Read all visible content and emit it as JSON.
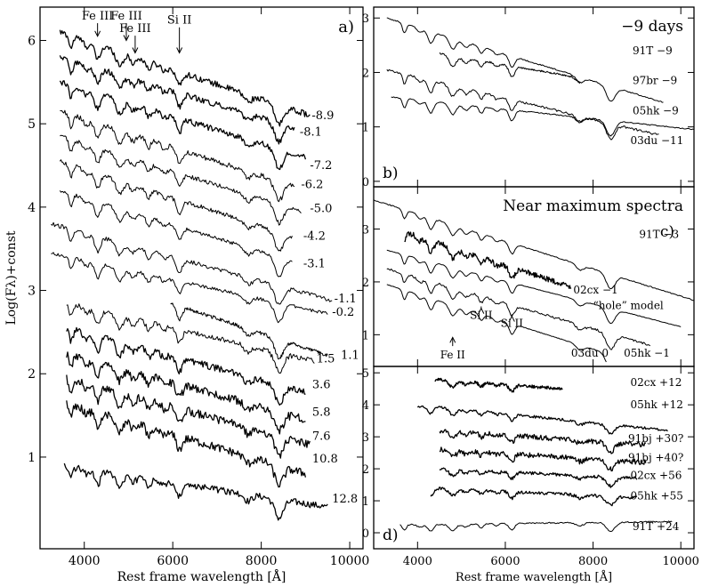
{
  "chart_data": [
    {
      "id": "a",
      "type": "line",
      "panel_label": "a)",
      "xlabel": "Rest frame wavelength [Å]",
      "ylabel": "Log(Fλ)+const",
      "xlim": [
        3000,
        10300
      ],
      "ylim": [
        -0.1,
        6.4
      ],
      "xticks": [
        4000,
        6000,
        8000,
        10000
      ],
      "xtick_labels": [
        "4000",
        "6000",
        "8000",
        "10000"
      ],
      "yticks": [
        1,
        2,
        3,
        4,
        5,
        6
      ],
      "ytick_labels": [
        "1",
        "2",
        "3",
        "4",
        "5",
        "6"
      ],
      "line_annotations": [
        {
          "label": "Fe III",
          "x": 4300,
          "y_tip": 6.05,
          "y_text": 6.25
        },
        {
          "label": "Fe III",
          "x": 4950,
          "y_tip": 6.0,
          "y_text": 6.25
        },
        {
          "label": "Fe III",
          "x": 5150,
          "y_tip": 5.85,
          "y_text": 6.1
        },
        {
          "label": "Si II",
          "x": 6150,
          "y_tip": 5.85,
          "y_text": 6.2
        }
      ],
      "series": [
        {
          "name": "-8.9",
          "x_range": [
            3450,
            9100
          ],
          "y_start": 6.1,
          "y_end": 5.1,
          "noise": 0.035,
          "label_pos": [
            9140,
            5.1
          ]
        },
        {
          "name": "-8.1",
          "x_range": [
            3450,
            8750
          ],
          "y_start": 5.8,
          "y_end": 4.95,
          "noise": 0.035,
          "label_pos": [
            8870,
            4.9
          ]
        },
        {
          "name": "-7.2",
          "x_range": [
            3450,
            9000
          ],
          "y_start": 5.5,
          "y_end": 4.6,
          "noise": 0.035,
          "label_pos": [
            9100,
            4.5
          ]
        },
        {
          "name": "-6.2",
          "x_range": [
            3450,
            8750
          ],
          "y_start": 5.15,
          "y_end": 4.25,
          "noise": 0.03,
          "label_pos": [
            8900,
            4.27
          ]
        },
        {
          "name": "-5.0",
          "x_range": [
            3450,
            8900
          ],
          "y_start": 4.85,
          "y_end": 3.95,
          "noise": 0.025,
          "label_pos": [
            9100,
            3.98
          ]
        },
        {
          "name": "-4.2",
          "x_range": [
            3450,
            8700
          ],
          "y_start": 4.55,
          "y_end": 3.65,
          "noise": 0.025,
          "label_pos": [
            8950,
            3.65
          ]
        },
        {
          "name": "-3.1",
          "x_range": [
            3450,
            8700
          ],
          "y_start": 4.2,
          "y_end": 3.35,
          "noise": 0.02,
          "label_pos": [
            8950,
            3.32
          ]
        },
        {
          "name": "-1.1",
          "x_range": [
            3250,
            9600
          ],
          "y_start": 3.8,
          "y_end": 2.88,
          "noise": 0.025,
          "label_pos": [
            9650,
            2.9
          ]
        },
        {
          "name": "-0.2",
          "x_range": [
            3250,
            9500
          ],
          "y_start": 3.45,
          "y_end": 2.72,
          "noise": 0.02,
          "label_pos": [
            9600,
            2.74
          ]
        },
        {
          "name": "1.1",
          "x_range": [
            5950,
            9500
          ],
          "y_start": 2.85,
          "y_end": 2.22,
          "noise": 0.02,
          "label_pos": [
            9800,
            2.22
          ]
        },
        {
          "name": "1.5",
          "x_range": [
            3600,
            9200
          ],
          "y_start": 2.85,
          "y_end": 2.15,
          "noise": 0.03,
          "label_pos": [
            9250,
            2.18
          ]
        },
        {
          "name": "3.6",
          "x_range": [
            3600,
            9000
          ],
          "y_start": 2.55,
          "y_end": 1.78,
          "noise": 0.04,
          "label_pos": [
            9150,
            1.87
          ]
        },
        {
          "name": "5.8",
          "x_range": [
            3600,
            9000
          ],
          "y_start": 2.25,
          "y_end": 1.45,
          "noise": 0.05,
          "label_pos": [
            9150,
            1.54
          ]
        },
        {
          "name": "7.6",
          "x_range": [
            3600,
            9100
          ],
          "y_start": 1.95,
          "y_end": 1.15,
          "noise": 0.05,
          "label_pos": [
            9150,
            1.25
          ]
        },
        {
          "name": "10.8",
          "x_range": [
            3600,
            9000
          ],
          "y_start": 1.65,
          "y_end": 0.8,
          "noise": 0.05,
          "label_pos": [
            9150,
            0.98
          ]
        },
        {
          "name": "12.8",
          "x_range": [
            3550,
            9500
          ],
          "y_start": 0.9,
          "y_end": 0.4,
          "noise": 0.04,
          "label_pos": [
            9600,
            0.5
          ]
        }
      ]
    },
    {
      "id": "b",
      "type": "line",
      "panel_label": "b)",
      "title": "−9 days",
      "xlim": [
        3000,
        10300
      ],
      "ylim": [
        -0.1,
        3.2
      ],
      "yticks": [
        0,
        1,
        2,
        3
      ],
      "ytick_labels": [
        "0",
        "1",
        "2",
        "3"
      ],
      "series": [
        {
          "name": "91T −9",
          "x_range": [
            3300,
            9600
          ],
          "y_start": 3.0,
          "y_end": 1.45,
          "noise": 0.01,
          "label_pos": [
            8900,
            2.4
          ]
        },
        {
          "name": "97br −9",
          "x_range": [
            4500,
            7700
          ],
          "y_start": 2.35,
          "y_end": 1.9,
          "noise": 0.015,
          "label_pos": [
            8900,
            1.85
          ]
        },
        {
          "name": "05hk −9",
          "x_range": [
            3300,
            9500
          ],
          "y_start": 2.05,
          "y_end": 0.85,
          "noise": 0.02,
          "label_pos": [
            8900,
            1.3
          ]
        },
        {
          "name": "03du −11",
          "x_range": [
            3400,
            10300
          ],
          "y_start": 1.55,
          "y_end": 0.95,
          "noise": 0.01,
          "label_pos": [
            8850,
            0.75
          ]
        }
      ]
    },
    {
      "id": "c",
      "type": "line",
      "panel_label": "c)",
      "title": "Near maximum spectra",
      "xlim": [
        3000,
        10300
      ],
      "ylim": [
        0.4,
        3.8
      ],
      "yticks": [
        1,
        2,
        3
      ],
      "ytick_labels": [
        "1",
        "2",
        "3"
      ],
      "line_annotations": [
        {
          "label": "Fe II",
          "x": 4800,
          "y_tip": 0.95,
          "y_text": 0.55
        },
        {
          "label": "Si II",
          "x": 5450,
          "y_tip": 1.5,
          "y_text": 1.3
        },
        {
          "label": "Si II",
          "x": 6150,
          "y_tip": 1.35,
          "y_text": 1.15
        }
      ],
      "series": [
        {
          "name": "91T −3",
          "x_range": [
            3000,
            10300
          ],
          "y_start": 3.55,
          "y_end": 1.65,
          "noise": 0.01,
          "label_pos": [
            9050,
            2.9
          ]
        },
        {
          "name": "02cx −1",
          "x_range": [
            3700,
            7500
          ],
          "y_start": 2.95,
          "y_end": 1.9,
          "noise": 0.05,
          "label_pos": [
            7550,
            1.85
          ]
        },
        {
          "name": "“hole” model",
          "x_range": [
            3300,
            10000
          ],
          "y_start": 2.6,
          "y_end": 1.15,
          "noise": 0.005,
          "label_pos": [
            8000,
            1.55
          ]
        },
        {
          "name": "05hk −1",
          "x_range": [
            3300,
            9300
          ],
          "y_start": 2.25,
          "y_end": 0.8,
          "noise": 0.02,
          "label_pos": [
            8700,
            0.65
          ]
        },
        {
          "name": "03du 0",
          "x_range": [
            3300,
            8300
          ],
          "y_start": 1.95,
          "y_end": 0.65,
          "noise": 0.005,
          "label_pos": [
            7500,
            0.65
          ]
        }
      ]
    },
    {
      "id": "d",
      "type": "line",
      "panel_label": "d)",
      "xlabel": "Rest frame wavelength [Å]",
      "xlim": [
        3000,
        10300
      ],
      "ylim": [
        -0.5,
        5.2
      ],
      "xticks": [
        4000,
        6000,
        8000,
        10000
      ],
      "xtick_labels": [
        "4000",
        "6000",
        "8000",
        "10000"
      ],
      "yticks": [
        0,
        1,
        2,
        3,
        4,
        5
      ],
      "ytick_labels": [
        "0",
        "1",
        "2",
        "3",
        "4",
        "5"
      ],
      "series": [
        {
          "name": "02cx +12",
          "x_range": [
            4400,
            7300
          ],
          "y_start": 4.8,
          "y_end": 4.5,
          "noise": 0.05,
          "label_pos": [
            8850,
            4.7
          ]
        },
        {
          "name": "05hk +12",
          "x_range": [
            4000,
            9700
          ],
          "y_start": 4.0,
          "y_end": 3.2,
          "noise": 0.04,
          "label_pos": [
            8850,
            4.0
          ]
        },
        {
          "name": "91bj +30?",
          "x_range": [
            4500,
            9200
          ],
          "y_start": 3.2,
          "y_end": 2.75,
          "noise": 0.08,
          "label_pos": [
            8800,
            2.95
          ]
        },
        {
          "name": "91bj +40?",
          "x_range": [
            4500,
            9200
          ],
          "y_start": 2.6,
          "y_end": 2.2,
          "noise": 0.08,
          "label_pos": [
            8800,
            2.35
          ]
        },
        {
          "name": "02cx +56",
          "x_range": [
            4500,
            9000
          ],
          "y_start": 2.0,
          "y_end": 1.7,
          "noise": 0.05,
          "label_pos": [
            8850,
            1.8
          ]
        },
        {
          "name": "05hk +55",
          "x_range": [
            4300,
            9000
          ],
          "y_start": 1.4,
          "y_end": 1.1,
          "noise": 0.05,
          "label_pos": [
            8850,
            1.15
          ]
        },
        {
          "name": "91T +24",
          "x_range": [
            3600,
            9800
          ],
          "y_start": 0.25,
          "y_end": 0.35,
          "noise": 0.02,
          "label_pos": [
            8900,
            0.2
          ]
        }
      ]
    }
  ]
}
